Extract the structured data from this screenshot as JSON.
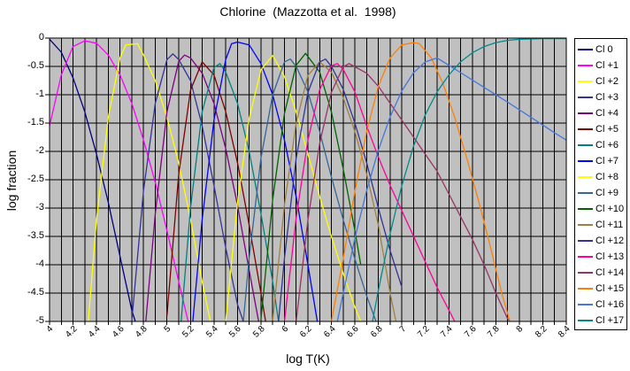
{
  "title": "Chlorine  (Mazzotta et al.  1998)",
  "axes": {
    "x_title": "log T(K)",
    "y_title": "log fraction",
    "x_min": 4,
    "x_max": 8.4,
    "y_min": -5,
    "y_max": 0,
    "x_grid_step": 0.1,
    "y_grid_step": 0.5,
    "x_tick_labels": [
      "4",
      "4.2",
      "4.4",
      "4.6",
      "4.8",
      "5",
      "5.2",
      "5.4",
      "5.6",
      "5.8",
      "6",
      "6.2",
      "6.4",
      "6.6",
      "6.8",
      "7",
      "7.2",
      "7.4",
      "7.6",
      "7.8",
      "8",
      "8.2",
      "8.4"
    ],
    "y_tick_labels": [
      "0",
      "-0.5",
      "-1",
      "-1.5",
      "-2",
      "-2.5",
      "-3",
      "-3.5",
      "-4",
      "-4.5",
      "-5"
    ]
  },
  "colors": {
    "page_bg": "#FFFFFF",
    "plot_bg": "#C0C0C0",
    "grid": "#000000",
    "border": "#000000"
  },
  "chart_data": {
    "type": "line",
    "title": "Chlorine  (Mazzotta et al.  1998)",
    "xlabel": "log T(K)",
    "ylabel": "log fraction",
    "xlim": [
      4,
      8.4
    ],
    "ylim": [
      -5,
      0
    ],
    "grid": true,
    "legend_position": "right",
    "series": [
      {
        "name": "Cl 0",
        "color": "#000080",
        "points": [
          [
            4.0,
            -0.02
          ],
          [
            4.1,
            -0.25
          ],
          [
            4.2,
            -0.7
          ],
          [
            4.3,
            -1.3
          ],
          [
            4.4,
            -2.05
          ],
          [
            4.5,
            -2.9
          ],
          [
            4.6,
            -3.85
          ],
          [
            4.7,
            -4.8
          ],
          [
            4.73,
            -5
          ]
        ]
      },
      {
        "name": "Cl +1",
        "color": "#FF00FF",
        "points": [
          [
            4.0,
            -1.55
          ],
          [
            4.1,
            -0.65
          ],
          [
            4.2,
            -0.15
          ],
          [
            4.3,
            -0.05
          ],
          [
            4.4,
            -0.09
          ],
          [
            4.5,
            -0.3
          ],
          [
            4.6,
            -0.65
          ],
          [
            4.7,
            -1.15
          ],
          [
            4.8,
            -1.8
          ],
          [
            4.9,
            -2.55
          ],
          [
            5.0,
            -3.4
          ],
          [
            5.1,
            -4.3
          ],
          [
            5.18,
            -5
          ]
        ]
      },
      {
        "name": "Cl +2",
        "color": "#FFFF00",
        "points": [
          [
            4.33,
            -5
          ],
          [
            4.4,
            -3.2
          ],
          [
            4.5,
            -1.4
          ],
          [
            4.6,
            -0.35
          ],
          [
            4.65,
            -0.12
          ],
          [
            4.75,
            -0.1
          ],
          [
            4.8,
            -0.3
          ],
          [
            4.9,
            -0.75
          ],
          [
            5.0,
            -1.4
          ],
          [
            5.1,
            -2.2
          ],
          [
            5.2,
            -3.2
          ],
          [
            5.3,
            -4.3
          ],
          [
            5.37,
            -5
          ]
        ]
      },
      {
        "name": "Cl +3",
        "color": "#333399",
        "points": [
          [
            4.7,
            -5
          ],
          [
            4.8,
            -2.69
          ],
          [
            4.9,
            -1.15
          ],
          [
            5.0,
            -0.38
          ],
          [
            5.05,
            -0.28
          ],
          [
            5.1,
            -0.38
          ],
          [
            5.2,
            -0.75
          ],
          [
            5.3,
            -1.55
          ],
          [
            5.4,
            -2.6
          ],
          [
            5.5,
            -3.7
          ],
          [
            5.6,
            -4.7
          ],
          [
            5.65,
            -5
          ]
        ]
      },
      {
        "name": "Cl +4",
        "color": "#800080",
        "points": [
          [
            4.82,
            -5
          ],
          [
            4.9,
            -3.1
          ],
          [
            5.0,
            -1.3
          ],
          [
            5.1,
            -0.41
          ],
          [
            5.15,
            -0.3
          ],
          [
            5.2,
            -0.35
          ],
          [
            5.3,
            -0.62
          ],
          [
            5.4,
            -1.15
          ],
          [
            5.5,
            -1.95
          ],
          [
            5.6,
            -2.95
          ],
          [
            5.7,
            -4.1
          ],
          [
            5.78,
            -5
          ]
        ]
      },
      {
        "name": "Cl +5",
        "color": "#800000",
        "points": [
          [
            5.0,
            -4.9
          ],
          [
            5.1,
            -2.4
          ],
          [
            5.2,
            -0.92
          ],
          [
            5.3,
            -0.42
          ],
          [
            5.4,
            -0.65
          ],
          [
            5.5,
            -1.3
          ],
          [
            5.6,
            -2.2
          ],
          [
            5.7,
            -3.3
          ],
          [
            5.8,
            -4.5
          ],
          [
            5.84,
            -5
          ]
        ]
      },
      {
        "name": "Cl +6",
        "color": "#008080",
        "points": [
          [
            5.12,
            -5
          ],
          [
            5.2,
            -3.0
          ],
          [
            5.3,
            -1.3
          ],
          [
            5.4,
            -0.52
          ],
          [
            5.45,
            -0.45
          ],
          [
            5.5,
            -0.6
          ],
          [
            5.6,
            -1.15
          ],
          [
            5.7,
            -2.0
          ],
          [
            5.8,
            -3.1
          ],
          [
            5.9,
            -4.3
          ],
          [
            5.95,
            -5
          ]
        ]
      },
      {
        "name": "Cl +7",
        "color": "#0000FF",
        "points": [
          [
            5.22,
            -5
          ],
          [
            5.3,
            -3.2
          ],
          [
            5.4,
            -1.45
          ],
          [
            5.5,
            -0.38
          ],
          [
            5.55,
            -0.1
          ],
          [
            5.6,
            -0.07
          ],
          [
            5.7,
            -0.12
          ],
          [
            5.8,
            -0.45
          ],
          [
            5.9,
            -1.0
          ],
          [
            6.0,
            -1.8
          ],
          [
            6.1,
            -2.8
          ],
          [
            6.2,
            -4.0
          ],
          [
            6.28,
            -5
          ]
        ]
      },
      {
        "name": "Cl +8",
        "color": "#FFFF00",
        "points": [
          [
            5.5,
            -5
          ],
          [
            5.6,
            -2.9
          ],
          [
            5.7,
            -1.42
          ],
          [
            5.8,
            -0.56
          ],
          [
            5.9,
            -0.31
          ],
          [
            6.0,
            -0.68
          ],
          [
            6.1,
            -1.3
          ],
          [
            6.2,
            -2.05
          ],
          [
            6.3,
            -2.8
          ],
          [
            6.4,
            -3.5
          ],
          [
            6.5,
            -4.15
          ],
          [
            6.6,
            -4.75
          ],
          [
            6.65,
            -5
          ]
        ]
      },
      {
        "name": "Cl +9",
        "color": "#336699",
        "points": [
          [
            5.65,
            -5
          ],
          [
            5.7,
            -3.88
          ],
          [
            5.8,
            -2.12
          ],
          [
            5.9,
            -1.0
          ],
          [
            6.0,
            -0.42
          ],
          [
            6.05,
            -0.37
          ],
          [
            6.1,
            -0.5
          ],
          [
            6.2,
            -0.95
          ],
          [
            6.3,
            -1.65
          ],
          [
            6.4,
            -2.45
          ],
          [
            6.5,
            -3.2
          ],
          [
            6.6,
            -3.9
          ],
          [
            6.7,
            -4.55
          ],
          [
            6.78,
            -5
          ]
        ]
      },
      {
        "name": "Cl +10",
        "color": "#006400",
        "points": [
          [
            5.8,
            -4.97
          ],
          [
            5.9,
            -2.85
          ],
          [
            6.0,
            -1.33
          ],
          [
            6.1,
            -0.48
          ],
          [
            6.18,
            -0.27
          ],
          [
            6.3,
            -0.6
          ],
          [
            6.4,
            -1.3
          ],
          [
            6.5,
            -2.3
          ],
          [
            6.6,
            -3.4
          ],
          [
            6.65,
            -4.0
          ]
        ]
      },
      {
        "name": "Cl +11",
        "color": "#A08040",
        "points": [
          [
            5.9,
            -4.98
          ],
          [
            6.0,
            -2.94
          ],
          [
            6.1,
            -1.5
          ],
          [
            6.2,
            -0.66
          ],
          [
            6.3,
            -0.42
          ],
          [
            6.4,
            -0.6
          ],
          [
            6.5,
            -1.05
          ],
          [
            6.6,
            -1.65
          ],
          [
            6.7,
            -2.4
          ],
          [
            6.8,
            -3.3
          ],
          [
            6.9,
            -4.5
          ],
          [
            6.95,
            -5
          ]
        ]
      },
      {
        "name": "Cl +12",
        "color": "#333399",
        "points": [
          [
            5.95,
            -5
          ],
          [
            6.0,
            -3.88
          ],
          [
            6.1,
            -2.12
          ],
          [
            6.2,
            -0.96
          ],
          [
            6.3,
            -0.42
          ],
          [
            6.35,
            -0.37
          ],
          [
            6.4,
            -0.5
          ],
          [
            6.5,
            -0.9
          ],
          [
            6.6,
            -1.5
          ],
          [
            6.7,
            -2.2
          ],
          [
            6.8,
            -3.0
          ],
          [
            6.9,
            -3.75
          ],
          [
            7.0,
            -4.4
          ]
        ]
      },
      {
        "name": "Cl +13",
        "color": "#FF0099",
        "points": [
          [
            6.0,
            -5
          ],
          [
            6.1,
            -3.17
          ],
          [
            6.2,
            -1.8
          ],
          [
            6.3,
            -0.91
          ],
          [
            6.4,
            -0.49
          ],
          [
            6.45,
            -0.45
          ],
          [
            6.5,
            -0.55
          ],
          [
            6.6,
            -0.95
          ],
          [
            6.7,
            -1.55
          ],
          [
            6.8,
            -2.1
          ],
          [
            6.9,
            -2.6
          ],
          [
            7.0,
            -3.05
          ],
          [
            7.1,
            -3.5
          ],
          [
            7.2,
            -3.95
          ],
          [
            7.3,
            -4.4
          ],
          [
            7.4,
            -4.8
          ],
          [
            7.45,
            -5
          ]
        ]
      },
      {
        "name": "Cl +14",
        "color": "#993366",
        "points": [
          [
            6.1,
            -5
          ],
          [
            6.2,
            -3.21
          ],
          [
            6.3,
            -1.86
          ],
          [
            6.4,
            -0.96
          ],
          [
            6.5,
            -0.51
          ],
          [
            6.55,
            -0.45
          ],
          [
            6.7,
            -0.62
          ],
          [
            6.8,
            -0.85
          ],
          [
            6.9,
            -1.15
          ],
          [
            7.0,
            -1.45
          ],
          [
            7.1,
            -1.75
          ],
          [
            7.2,
            -2.05
          ],
          [
            7.3,
            -2.35
          ],
          [
            7.4,
            -2.75
          ],
          [
            7.5,
            -3.15
          ],
          [
            7.6,
            -3.55
          ],
          [
            7.7,
            -4.0
          ],
          [
            7.8,
            -4.5
          ],
          [
            7.9,
            -4.95
          ],
          [
            7.92,
            -5
          ]
        ]
      },
      {
        "name": "Cl +15",
        "color": "#FF8000",
        "points": [
          [
            6.4,
            -5
          ],
          [
            6.5,
            -3.9
          ],
          [
            6.6,
            -2.7
          ],
          [
            6.7,
            -1.65
          ],
          [
            6.8,
            -0.85
          ],
          [
            6.9,
            -0.35
          ],
          [
            7.0,
            -0.12
          ],
          [
            7.1,
            -0.08
          ],
          [
            7.15,
            -0.1
          ],
          [
            7.25,
            -0.35
          ],
          [
            7.35,
            -0.8
          ],
          [
            7.45,
            -1.4
          ],
          [
            7.55,
            -2.1
          ],
          [
            7.65,
            -2.85
          ],
          [
            7.75,
            -3.65
          ],
          [
            7.85,
            -4.5
          ],
          [
            7.92,
            -5
          ]
        ]
      },
      {
        "name": "Cl +16",
        "color": "#4477DD",
        "points": [
          [
            6.45,
            -5
          ],
          [
            6.5,
            -4.51
          ],
          [
            6.6,
            -3.53
          ],
          [
            6.7,
            -2.69
          ],
          [
            6.8,
            -1.98
          ],
          [
            6.9,
            -1.39
          ],
          [
            7.0,
            -0.93
          ],
          [
            7.1,
            -0.61
          ],
          [
            7.2,
            -0.42
          ],
          [
            7.3,
            -0.35
          ],
          [
            7.5,
            -0.61
          ],
          [
            7.7,
            -0.87
          ],
          [
            7.9,
            -1.13
          ],
          [
            8.1,
            -1.4
          ],
          [
            8.3,
            -1.67
          ],
          [
            8.4,
            -1.8
          ]
        ]
      },
      {
        "name": "Cl +17",
        "color": "#008B8B",
        "points": [
          [
            6.75,
            -5
          ],
          [
            6.8,
            -4.45
          ],
          [
            6.9,
            -3.45
          ],
          [
            7.0,
            -2.6
          ],
          [
            7.1,
            -1.9
          ],
          [
            7.2,
            -1.35
          ],
          [
            7.3,
            -0.95
          ],
          [
            7.4,
            -0.65
          ],
          [
            7.5,
            -0.42
          ],
          [
            7.6,
            -0.26
          ],
          [
            7.7,
            -0.15
          ],
          [
            7.8,
            -0.08
          ],
          [
            7.9,
            -0.04
          ],
          [
            8.0,
            -0.02
          ],
          [
            8.2,
            -0.01
          ],
          [
            8.4,
            -0.01
          ]
        ]
      }
    ]
  }
}
